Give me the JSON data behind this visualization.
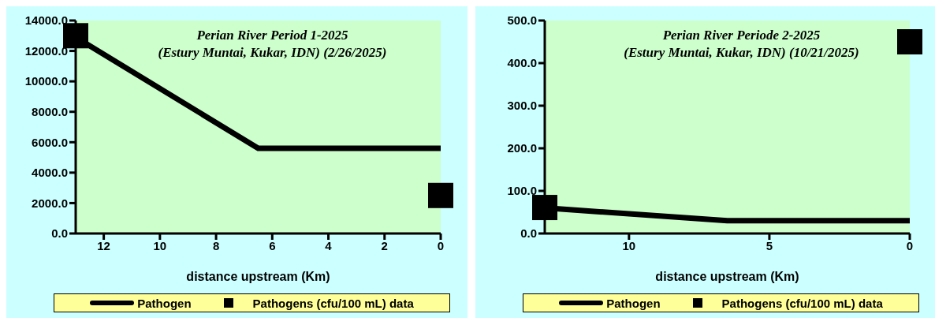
{
  "chart_data": [
    {
      "type": "line",
      "title": "Perian River Period 1-2025",
      "subtitle": "(Estury Muntai, Kukar, IDN) (2/26/2025)",
      "xlabel": "distance upstream (Km)",
      "xlim": [
        13,
        0
      ],
      "xticks": [
        12,
        10,
        8,
        6,
        4,
        2,
        0
      ],
      "ylim": [
        0,
        14000
      ],
      "yticks": [
        {
          "value": 0,
          "label": "0.0"
        },
        {
          "value": 2000,
          "label": "2000.0"
        },
        {
          "value": 4000,
          "label": "4000.0"
        },
        {
          "value": 6000,
          "label": "6000.0"
        },
        {
          "value": 8000,
          "label": "8000.0"
        },
        {
          "value": 10000,
          "label": "10000.0"
        },
        {
          "value": 12000,
          "label": "12000.0"
        },
        {
          "value": 14000,
          "label": "14000.0"
        }
      ],
      "grid": false,
      "legend": "bottom",
      "series": [
        {
          "name": "Pathogen",
          "type": "line",
          "color": "#000000",
          "x": [
            13,
            6.5,
            0
          ],
          "values": [
            12900,
            5600,
            5600
          ]
        },
        {
          "name": "Pathogens (cfu/100 mL) data",
          "type": "scatter",
          "marker": "square",
          "color": "#000000",
          "x": [
            13,
            0
          ],
          "values": [
            13000,
            2500
          ]
        }
      ]
    },
    {
      "type": "line",
      "title": "Perian River Periode 2-2025",
      "subtitle": "(Estury Muntai, Kukar, IDN) (10/21/2025)",
      "xlabel": "distance upstream (Km)",
      "xlim": [
        13,
        0
      ],
      "xticks": [
        10,
        5,
        0
      ],
      "ylim": [
        0,
        500
      ],
      "yticks": [
        {
          "value": 0,
          "label": "0.0"
        },
        {
          "value": 100,
          "label": "100.0"
        },
        {
          "value": 200,
          "label": "200.0"
        },
        {
          "value": 300,
          "label": "300.0"
        },
        {
          "value": 400,
          "label": "400.0"
        },
        {
          "value": 500,
          "label": "500.0"
        }
      ],
      "grid": false,
      "legend": "bottom",
      "series": [
        {
          "name": "Pathogen",
          "type": "line",
          "color": "#000000",
          "x": [
            13,
            6.5,
            0
          ],
          "values": [
            60,
            30,
            30
          ]
        },
        {
          "name": "Pathogens (cfu/100 mL) data",
          "type": "scatter",
          "marker": "square",
          "color": "#000000",
          "x": [
            13,
            0
          ],
          "values": [
            61,
            450
          ]
        }
      ]
    }
  ]
}
